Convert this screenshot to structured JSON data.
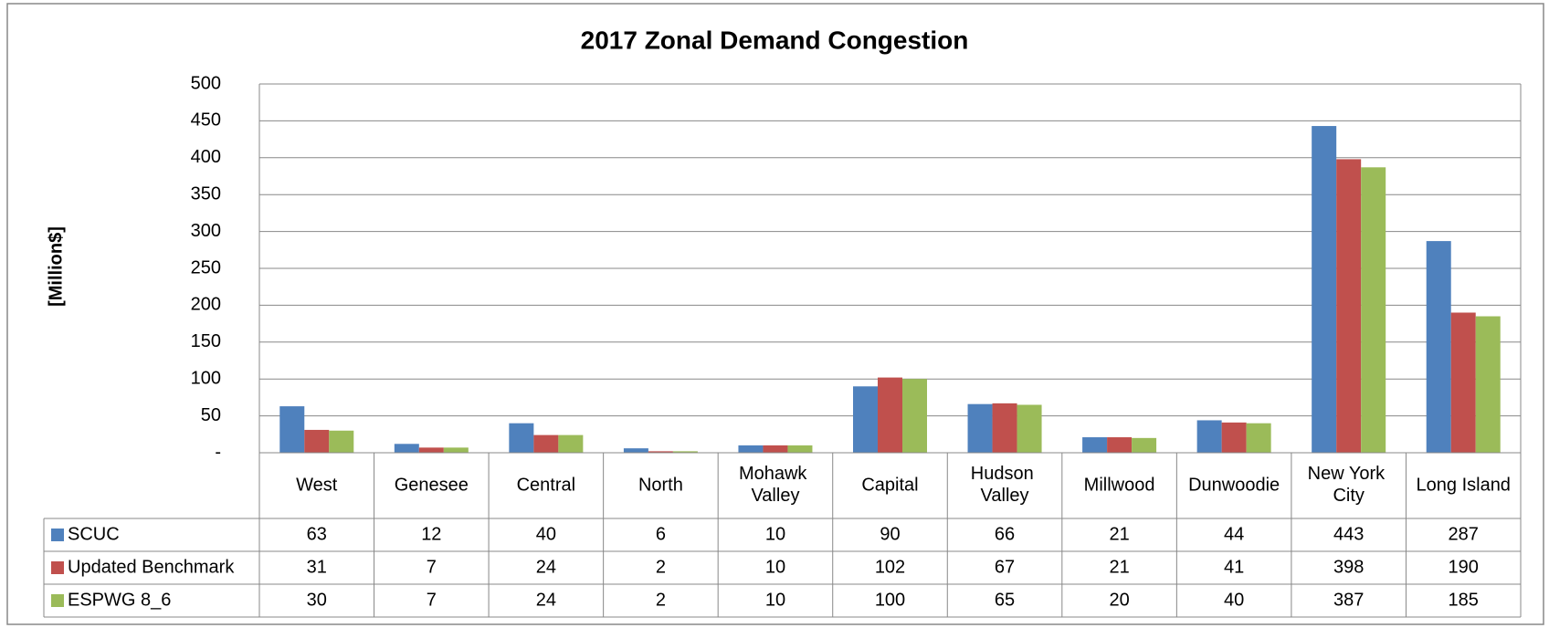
{
  "chart_data": {
    "type": "bar",
    "title": "2017 Zonal Demand Congestion",
    "y_label": "[Million$]",
    "categories": [
      "West",
      "Genesee",
      "Central",
      "North",
      "Mohawk Valley",
      "Capital",
      "Hudson Valley",
      "Millwood",
      "Dunwoodie",
      "New York City",
      "Long Island"
    ],
    "series": [
      {
        "name": "SCUC",
        "color": "#4f81bd",
        "values": [
          63,
          12,
          40,
          6,
          10,
          90,
          66,
          21,
          44,
          443,
          287
        ]
      },
      {
        "name": "Updated Benchmark",
        "color": "#c0504d",
        "values": [
          31,
          7,
          24,
          2,
          10,
          102,
          67,
          21,
          41,
          398,
          190
        ]
      },
      {
        "name": "ESPWG 8_6",
        "color": "#9bbb59",
        "values": [
          30,
          7,
          24,
          2,
          10,
          100,
          65,
          20,
          40,
          387,
          185
        ]
      }
    ],
    "ylim": [
      0,
      500
    ],
    "yticks": [
      {
        "value": 0,
        "label": "-"
      },
      50,
      100,
      150,
      200,
      250,
      300,
      350,
      400,
      450,
      500
    ],
    "grid": true,
    "data_table": true
  }
}
